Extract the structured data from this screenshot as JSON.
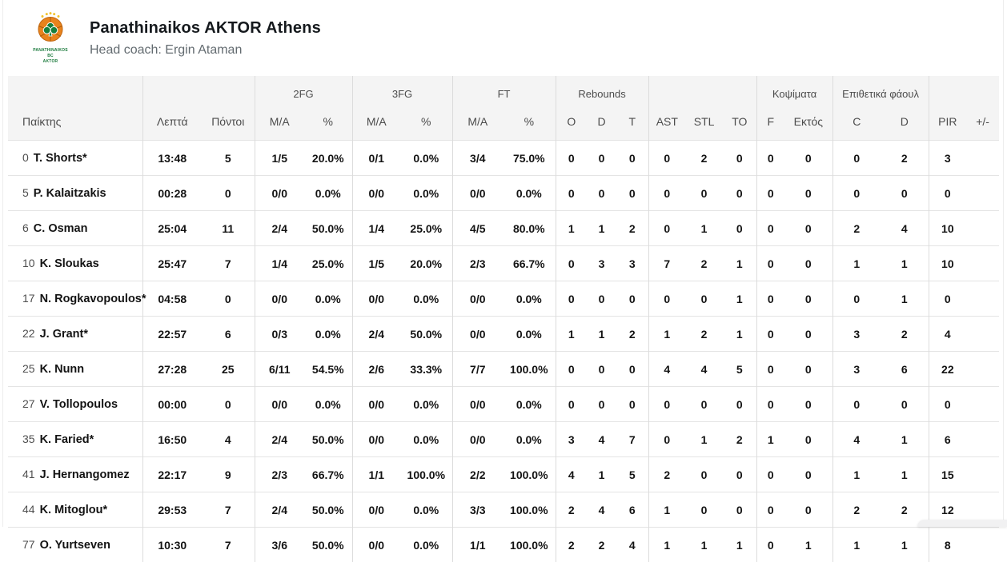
{
  "team_header": {
    "title": "Panathinaikos AKTOR Athens",
    "subtitle": "Head coach: Ergin Ataman",
    "logo": {
      "caption_line1": "PANATHINAIKOS BC",
      "caption_line2": "AKTOR"
    }
  },
  "colors": {
    "header_bg": "#f4f4f4",
    "row_border": "#e4e4e4",
    "group_divider": "#dcdcdc",
    "text_primary": "#131313",
    "text_secondary": "#4c4c4c",
    "subtitle_gray": "#636b70",
    "logo_ball": "#e8831d",
    "logo_clover": "#157f3d",
    "logo_stars": "#f2c330"
  },
  "icons": {
    "team_logo": "basketball-with-clover-logo"
  },
  "table": {
    "group_headers": [
      {
        "label": "",
        "span": 1
      },
      {
        "label": "",
        "span": 2
      },
      {
        "label": "2FG",
        "span": 2
      },
      {
        "label": "3FG",
        "span": 2
      },
      {
        "label": "FT",
        "span": 2
      },
      {
        "label": "Rebounds",
        "span": 3
      },
      {
        "label": "",
        "span": 3
      },
      {
        "label": "Κοψίματα",
        "span": 2
      },
      {
        "label": "Επιθετικά φάουλ",
        "span": 2
      },
      {
        "label": "",
        "span": 2
      }
    ],
    "columns": [
      "Παίκτης",
      "Λεπτά",
      "Πόντοι",
      "M/A",
      "%",
      "M/A",
      "%",
      "M/A",
      "%",
      "O",
      "D",
      "T",
      "AST",
      "STL",
      "TO",
      "F",
      "Εκτός",
      "C",
      "D",
      "PIR",
      "+/-"
    ],
    "rows": [
      {
        "number": "0",
        "name": "T. Shorts*",
        "stats": [
          "13:48",
          "5",
          "1/5",
          "20.0%",
          "0/1",
          "0.0%",
          "3/4",
          "75.0%",
          "0",
          "0",
          "0",
          "0",
          "2",
          "0",
          "0",
          "0",
          "0",
          "2",
          "3",
          ""
        ]
      },
      {
        "number": "5",
        "name": "P. Kalaitzakis",
        "stats": [
          "00:28",
          "0",
          "0/0",
          "0.0%",
          "0/0",
          "0.0%",
          "0/0",
          "0.0%",
          "0",
          "0",
          "0",
          "0",
          "0",
          "0",
          "0",
          "0",
          "0",
          "0",
          "0",
          ""
        ]
      },
      {
        "number": "6",
        "name": "C. Osman",
        "stats": [
          "25:04",
          "11",
          "2/4",
          "50.0%",
          "1/4",
          "25.0%",
          "4/5",
          "80.0%",
          "1",
          "1",
          "2",
          "0",
          "1",
          "0",
          "0",
          "0",
          "2",
          "4",
          "10",
          ""
        ]
      },
      {
        "number": "10",
        "name": "K. Sloukas",
        "stats": [
          "25:47",
          "7",
          "1/4",
          "25.0%",
          "1/5",
          "20.0%",
          "2/3",
          "66.7%",
          "0",
          "3",
          "3",
          "7",
          "2",
          "1",
          "0",
          "0",
          "1",
          "1",
          "10",
          ""
        ]
      },
      {
        "number": "17",
        "name": "N. Rogkavopoulos*",
        "stats": [
          "04:58",
          "0",
          "0/0",
          "0.0%",
          "0/0",
          "0.0%",
          "0/0",
          "0.0%",
          "0",
          "0",
          "0",
          "0",
          "0",
          "1",
          "0",
          "0",
          "0",
          "1",
          "0",
          ""
        ]
      },
      {
        "number": "22",
        "name": "J. Grant*",
        "stats": [
          "22:57",
          "6",
          "0/3",
          "0.0%",
          "2/4",
          "50.0%",
          "0/0",
          "0.0%",
          "1",
          "1",
          "2",
          "1",
          "2",
          "1",
          "0",
          "0",
          "3",
          "2",
          "4",
          ""
        ]
      },
      {
        "number": "25",
        "name": "K. Nunn",
        "stats": [
          "27:28",
          "25",
          "6/11",
          "54.5%",
          "2/6",
          "33.3%",
          "7/7",
          "100.0%",
          "0",
          "0",
          "0",
          "4",
          "4",
          "5",
          "0",
          "0",
          "3",
          "6",
          "22",
          ""
        ]
      },
      {
        "number": "27",
        "name": "V. Tollopoulos",
        "stats": [
          "00:00",
          "0",
          "0/0",
          "0.0%",
          "0/0",
          "0.0%",
          "0/0",
          "0.0%",
          "0",
          "0",
          "0",
          "0",
          "0",
          "0",
          "0",
          "0",
          "0",
          "0",
          "0",
          ""
        ]
      },
      {
        "number": "35",
        "name": "K. Faried*",
        "stats": [
          "16:50",
          "4",
          "2/4",
          "50.0%",
          "0/0",
          "0.0%",
          "0/0",
          "0.0%",
          "3",
          "4",
          "7",
          "0",
          "1",
          "2",
          "1",
          "0",
          "4",
          "1",
          "6",
          ""
        ]
      },
      {
        "number": "41",
        "name": "J. Hernangomez",
        "stats": [
          "22:17",
          "9",
          "2/3",
          "66.7%",
          "1/1",
          "100.0%",
          "2/2",
          "100.0%",
          "4",
          "1",
          "5",
          "2",
          "0",
          "0",
          "0",
          "0",
          "1",
          "1",
          "15",
          ""
        ]
      },
      {
        "number": "44",
        "name": "K. Mitoglou*",
        "stats": [
          "29:53",
          "7",
          "2/4",
          "50.0%",
          "0/0",
          "0.0%",
          "3/3",
          "100.0%",
          "2",
          "4",
          "6",
          "1",
          "0",
          "0",
          "0",
          "0",
          "2",
          "2",
          "12",
          ""
        ]
      },
      {
        "number": "77",
        "name": "O. Yurtseven",
        "stats": [
          "10:30",
          "7",
          "3/6",
          "50.0%",
          "0/0",
          "0.0%",
          "1/1",
          "100.0%",
          "2",
          "2",
          "4",
          "1",
          "1",
          "1",
          "0",
          "1",
          "1",
          "1",
          "8",
          ""
        ]
      }
    ]
  }
}
